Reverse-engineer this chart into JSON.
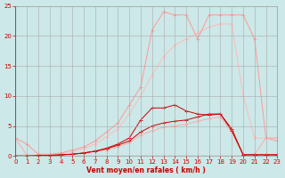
{
  "x": [
    0,
    1,
    2,
    3,
    4,
    5,
    6,
    7,
    8,
    9,
    10,
    11,
    12,
    13,
    14,
    15,
    16,
    17,
    18,
    19,
    20,
    21,
    22,
    23
  ],
  "lines": {
    "upper_jagged": [
      3.0,
      2.0,
      0.3,
      0.3,
      0.5,
      1.0,
      1.5,
      2.5,
      4.0,
      5.5,
      8.5,
      11.5,
      21.0,
      24.0,
      23.5,
      23.5,
      19.5,
      23.5,
      23.5,
      23.5,
      23.5,
      19.5,
      3.0,
      2.5
    ],
    "upper_smooth": [
      0.0,
      0.0,
      0.0,
      0.1,
      0.3,
      0.7,
      1.2,
      2.0,
      3.2,
      4.5,
      7.0,
      10.0,
      13.5,
      16.5,
      18.5,
      19.5,
      20.5,
      21.5,
      22.0,
      22.0,
      10.0,
      3.0,
      3.0,
      3.0
    ],
    "dark_hump": [
      0.0,
      0.0,
      0.1,
      0.1,
      0.2,
      0.3,
      0.5,
      0.8,
      1.3,
      2.0,
      3.0,
      6.0,
      8.0,
      8.0,
      8.5,
      7.5,
      7.0,
      6.8,
      7.0,
      4.5,
      0.2,
      0.2,
      0.2,
      0.2
    ],
    "dark_rise": [
      0.0,
      0.0,
      0.0,
      0.1,
      0.2,
      0.3,
      0.5,
      0.8,
      1.2,
      1.8,
      2.5,
      4.0,
      5.0,
      5.5,
      5.8,
      6.0,
      6.5,
      7.0,
      7.0,
      4.2,
      0.2,
      0.2,
      0.2,
      0.2
    ],
    "low_pink": [
      3.0,
      0.1,
      0.1,
      0.1,
      0.2,
      0.3,
      0.5,
      0.8,
      1.0,
      1.5,
      2.2,
      3.5,
      4.2,
      4.8,
      5.0,
      5.3,
      5.8,
      6.2,
      6.5,
      4.0,
      0.2,
      0.3,
      3.0,
      3.0
    ]
  },
  "colors": {
    "upper_jagged": "#ff9999",
    "upper_smooth": "#ffbbbb",
    "dark_hump": "#cc0000",
    "dark_rise": "#cc0000",
    "low_pink": "#ffaaaa"
  },
  "background_color": "#cce8e8",
  "grid_color": "#aaaaaa",
  "xlim": [
    0,
    23
  ],
  "ylim": [
    0,
    25
  ],
  "yticks": [
    0,
    5,
    10,
    15,
    20,
    25
  ],
  "xticks": [
    0,
    1,
    2,
    3,
    4,
    5,
    6,
    7,
    8,
    9,
    10,
    11,
    12,
    13,
    14,
    15,
    16,
    17,
    18,
    19,
    20,
    21,
    22,
    23
  ],
  "xlabel": "Vent moyen/en rafales ( km/h )",
  "tick_color": "#cc0000",
  "label_color": "#cc0000",
  "fig_width": 3.2,
  "fig_height": 2.0,
  "dpi": 100
}
